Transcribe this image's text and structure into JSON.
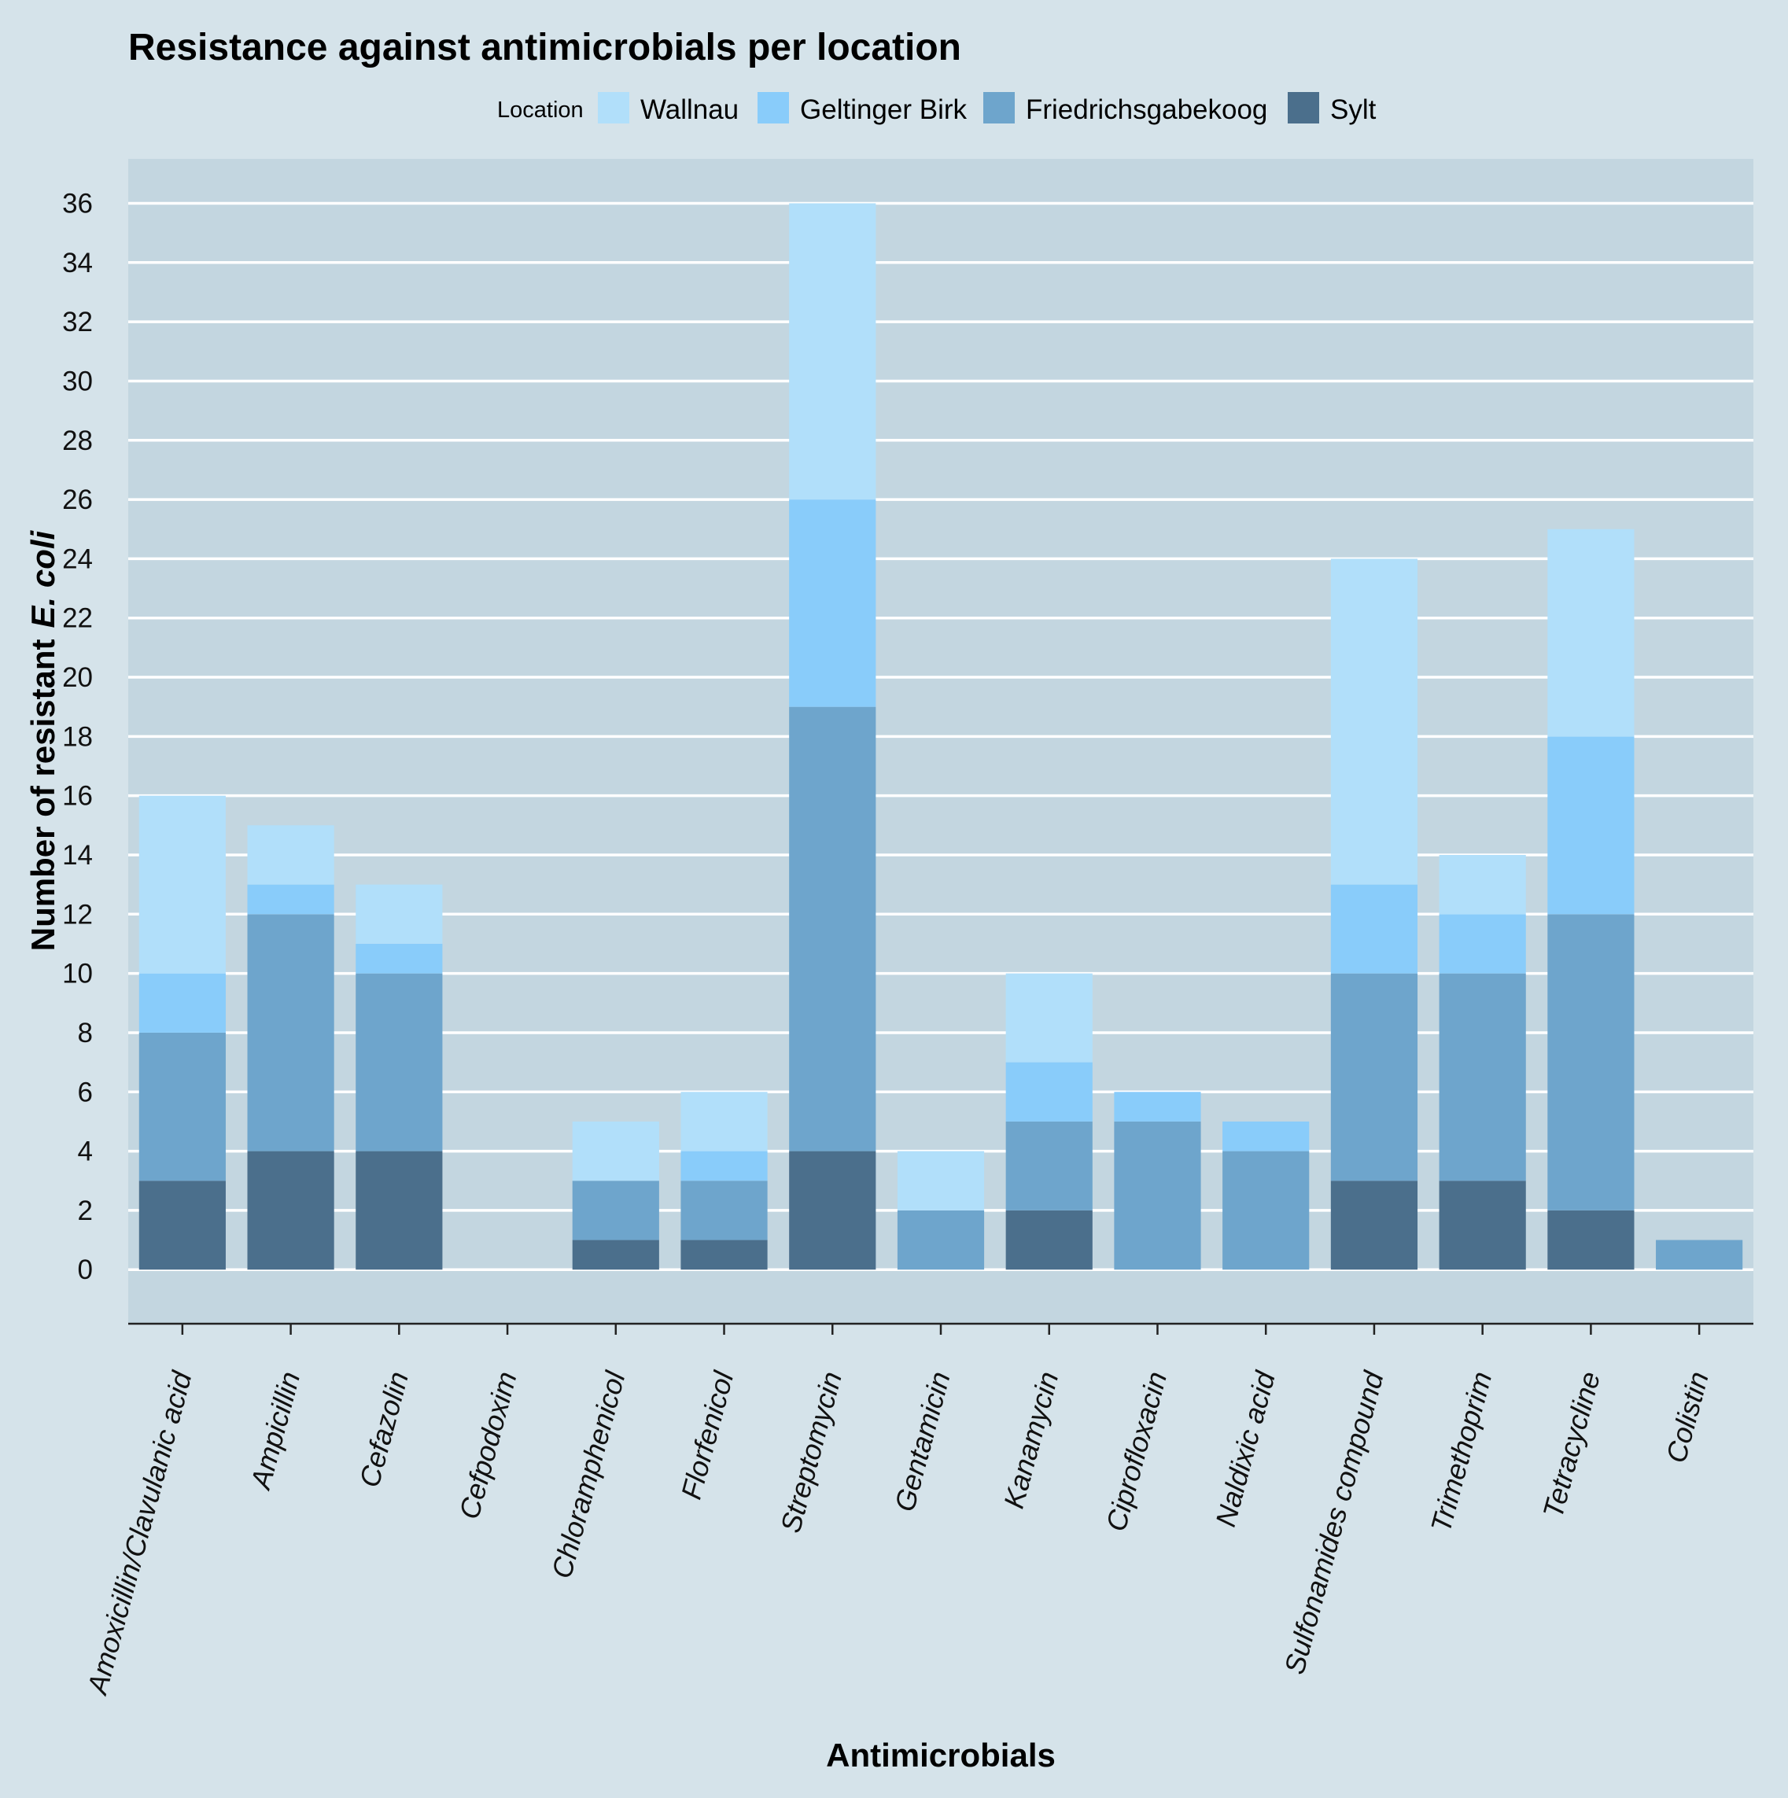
{
  "chart_data": {
    "type": "bar",
    "stacked": true,
    "title": "Resistance against antimicrobials per location",
    "xlabel": "Antimicrobials",
    "ylabel_prefix": "Number of resistant",
    "ylabel_italic": "E. coli",
    "ylim": [
      -1.8,
      37.5
    ],
    "y_ticks": [
      0,
      2,
      4,
      6,
      8,
      10,
      12,
      14,
      16,
      18,
      20,
      22,
      24,
      26,
      28,
      30,
      32,
      34,
      36
    ],
    "grid": true,
    "legend": {
      "title": "Location",
      "position": "top",
      "order": [
        "Wallnau",
        "Geltinger Birk",
        "Friedrichsgabekoog",
        "Sylt"
      ]
    },
    "categories": [
      "Amoxicillin/Clavulanic acid",
      "Ampicillin",
      "Cefazolin",
      "Cefpodoxim",
      "Chloramphenicol",
      "Florfenicol",
      "Streptomycin",
      "Gentamicin",
      "Kanamycin",
      "Ciprofloxacin",
      "Naldixic acid",
      "Sulfonamides compound",
      "Trimethoprim",
      "Tetracycline",
      "Colistin"
    ],
    "series": [
      {
        "name": "Sylt",
        "color": "#4b6f8c",
        "values": [
          3,
          4,
          4,
          0,
          1,
          1,
          4,
          0,
          2,
          0,
          0,
          3,
          3,
          2,
          0
        ]
      },
      {
        "name": "Friedrichsgabekoog",
        "color": "#6ea5cc",
        "values": [
          5,
          8,
          6,
          0,
          2,
          2,
          15,
          2,
          3,
          5,
          4,
          7,
          7,
          10,
          1
        ]
      },
      {
        "name": "Geltinger Birk",
        "color": "#89ccfa",
        "values": [
          2,
          1,
          1,
          0,
          0,
          1,
          7,
          0,
          2,
          1,
          1,
          3,
          2,
          6,
          0
        ]
      },
      {
        "name": "Wallnau",
        "color": "#b1dffa",
        "values": [
          6,
          2,
          2,
          0,
          2,
          2,
          10,
          2,
          3,
          0,
          0,
          11,
          2,
          7,
          0
        ]
      }
    ],
    "colors": {
      "page_bg": "#d5e3ea",
      "panel_bg": "#c3d6e0",
      "grid": "#ffffff",
      "axis": "#222222"
    }
  }
}
